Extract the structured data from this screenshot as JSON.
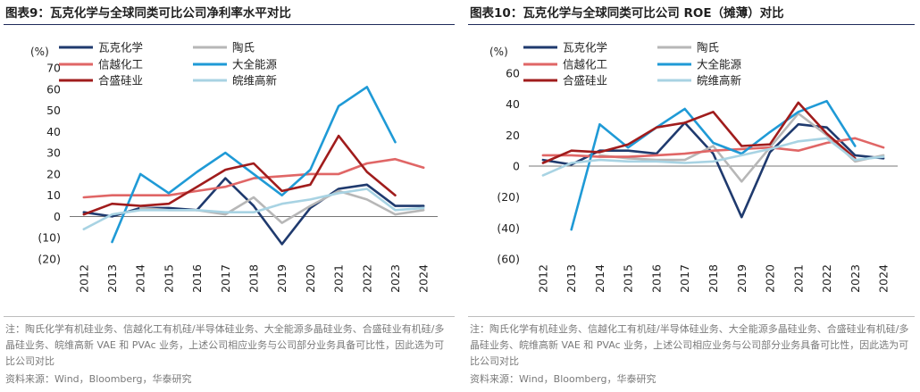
{
  "charts": [
    {
      "title": "图表9：瓦克化学与全球同类可比公司净利率水平对比",
      "note": "注：陶氏化学有机硅业务、信越化工有机硅/半导体硅业务、大全能源多晶硅业务、合盛硅业有机硅/多晶硅业务、皖维高新 VAE 和 PVAc 业务，上述公司相应业务与公司部分业务具备可比性，因此选为可比公司对比",
      "source": "资料来源：Wind，Bloomberg，华泰研究",
      "chart_data": {
        "type": "line",
        "unit_label": "(%)",
        "x": [
          "2012",
          "2013",
          "2014",
          "2015",
          "2016",
          "2017",
          "2018",
          "2019",
          "2020",
          "2021",
          "2022",
          "2023",
          "2024"
        ],
        "ylim": [
          -20,
          70
        ],
        "yticks": [
          -20,
          -10,
          0,
          10,
          20,
          30,
          40,
          50,
          60,
          70
        ],
        "ytick_labels": [
          "(20)",
          "(10)",
          "0",
          "10",
          "20",
          "30",
          "40",
          "50",
          "60",
          "70"
        ],
        "grid": false,
        "legend_placement": "top",
        "series": [
          {
            "name": "瓦克化学",
            "color": "#1f3a6e",
            "values": [
              2,
              0,
              4,
              4,
              3,
              18,
              5,
              -13,
              4,
              13,
              15,
              5,
              5
            ]
          },
          {
            "name": "陶氏",
            "color": "#b7b7b7",
            "values": [
              null,
              null,
              4,
              3,
              3,
              1,
              9,
              -3,
              5,
              12,
              8,
              1,
              3
            ]
          },
          {
            "name": "信越化工",
            "color": "#e06666",
            "values": [
              9,
              10,
              10,
              10,
              12,
              14,
              18,
              19,
              20,
              20,
              25,
              27,
              23
            ]
          },
          {
            "name": "大全能源",
            "color": "#1f9ad6",
            "values": [
              null,
              -12,
              20,
              11,
              21,
              30,
              20,
              10,
              22,
              52,
              61,
              35,
              null
            ]
          },
          {
            "name": "合盛硅业",
            "color": "#a01c1c",
            "values": [
              1,
              6,
              5,
              6,
              14,
              22,
              25,
              12,
              15,
              38,
              21,
              10,
              null
            ]
          },
          {
            "name": "皖维高新",
            "color": "#a8d3e3",
            "values": [
              -6,
              1,
              3,
              3,
              3,
              2,
              2,
              6,
              8,
              11,
              13,
              3,
              4
            ]
          }
        ]
      }
    },
    {
      "title": "图表10：瓦克化学与全球同类可比公司 ROE（摊薄）对比",
      "note": "注：陶氏化学有机硅业务、信越化工有机硅/半导体硅业务、大全能源多晶硅业务、合盛硅业有机硅/多晶硅业务、皖维高新 VAE 和 PVAc 业务，上述公司相应业务与公司部分业务具备可比性，因此选为可比公司对比",
      "source": "资料来源：Wind，Bloomberg，华泰研究",
      "chart_data": {
        "type": "line",
        "unit_label": "(%)",
        "x": [
          "2012",
          "2013",
          "2014",
          "2015",
          "2016",
          "2017",
          "2018",
          "2019",
          "2020",
          "2021",
          "2022",
          "2023",
          "2024"
        ],
        "ylim": [
          -60,
          60
        ],
        "yticks": [
          -60,
          -40,
          -20,
          0,
          20,
          40,
          60
        ],
        "ytick_labels": [
          "(60)",
          "(40)",
          "(20)",
          "0",
          "20",
          "40",
          "60"
        ],
        "grid": false,
        "legend_placement": "top",
        "series": [
          {
            "name": "瓦克化学",
            "color": "#1f3a6e",
            "values": [
              4,
              1,
              10,
              10,
              8,
              28,
              8,
              -33,
              9,
              27,
              25,
              7,
              5
            ]
          },
          {
            "name": "陶氏",
            "color": "#b7b7b7",
            "values": [
              null,
              null,
              7,
              5,
              4,
              4,
              13,
              -10,
              12,
              34,
              20,
              3,
              7
            ]
          },
          {
            "name": "信越化工",
            "color": "#e06666",
            "values": [
              7,
              7,
              6,
              6,
              7,
              8,
              10,
              11,
              12,
              10,
              15,
              18,
              12
            ]
          },
          {
            "name": "大全能源",
            "color": "#1f9ad6",
            "values": [
              null,
              -41,
              27,
              12,
              25,
              37,
              15,
              8,
              22,
              35,
              42,
              13,
              null
            ]
          },
          {
            "name": "合盛硅业",
            "color": "#a01c1c",
            "values": [
              2,
              10,
              9,
              14,
              25,
              28,
              35,
              13,
              14,
              41,
              21,
              5,
              null
            ]
          },
          {
            "name": "皖维高新",
            "color": "#a8d3e3",
            "values": [
              -6,
              2,
              4,
              3,
              3,
              2,
              3,
              7,
              11,
              16,
              18,
              4,
              6
            ]
          }
        ]
      }
    }
  ]
}
